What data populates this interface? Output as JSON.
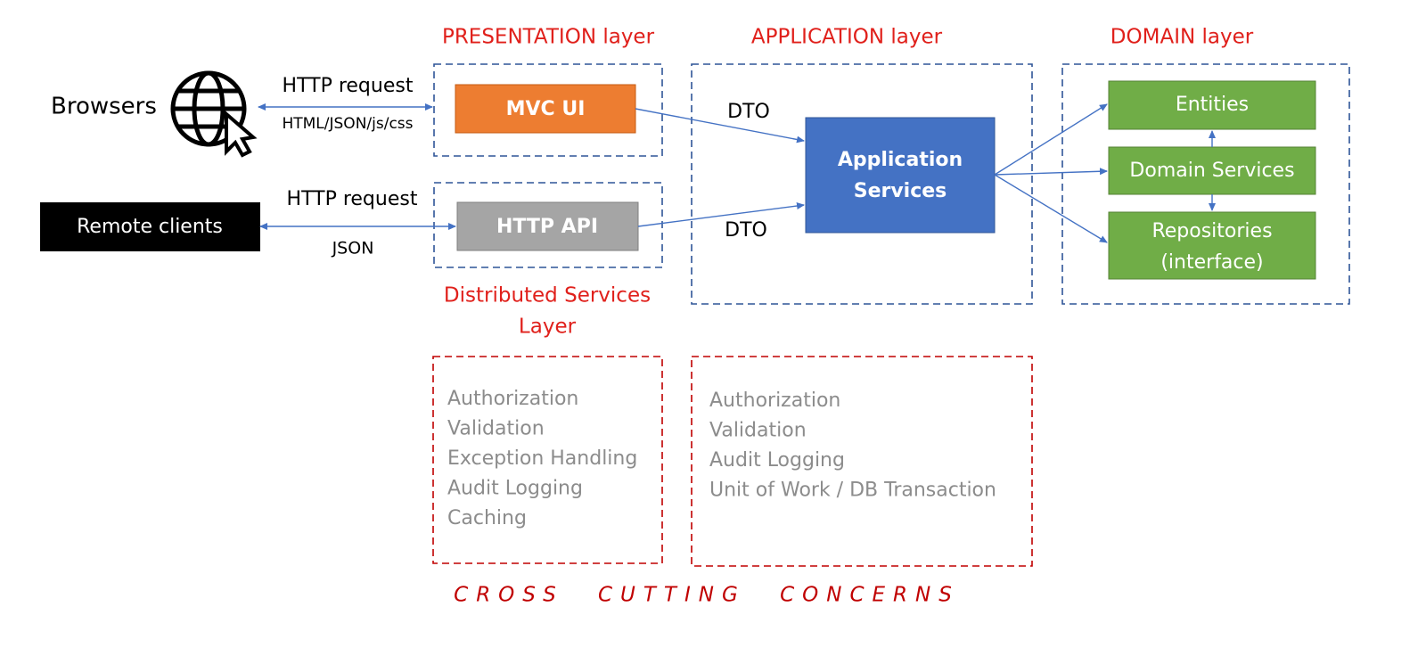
{
  "layers": {
    "presentation": "PRESENTATION layer",
    "application": "APPLICATION layer",
    "domain": "DOMAIN layer",
    "distributed": [
      "Distributed Services",
      "Layer"
    ]
  },
  "clients": {
    "browsers": "Browsers",
    "remote": "Remote clients"
  },
  "edges": {
    "browser_request": "HTTP request",
    "browser_response": "HTML/JSON/js/css",
    "remote_request": "HTTP request",
    "remote_response": "JSON",
    "dto_top": "DTO",
    "dto_bottom": "DTO"
  },
  "nodes": {
    "mvc_ui": "MVC UI",
    "http_api": "HTTP API",
    "app_services": [
      "Application",
      "Services"
    ],
    "entities": "Entities",
    "domain_services": "Domain Services",
    "repositories": [
      "Repositories",
      "(interface)"
    ]
  },
  "concerns": {
    "presentation": [
      "Authorization",
      "Validation",
      "Exception Handling",
      "Audit Logging",
      "Caching"
    ],
    "application": [
      "Authorization",
      "Validation",
      "Audit Logging",
      "Unit of Work / DB Transaction"
    ]
  },
  "footer": "CROSS CUTTING CONCERNS"
}
